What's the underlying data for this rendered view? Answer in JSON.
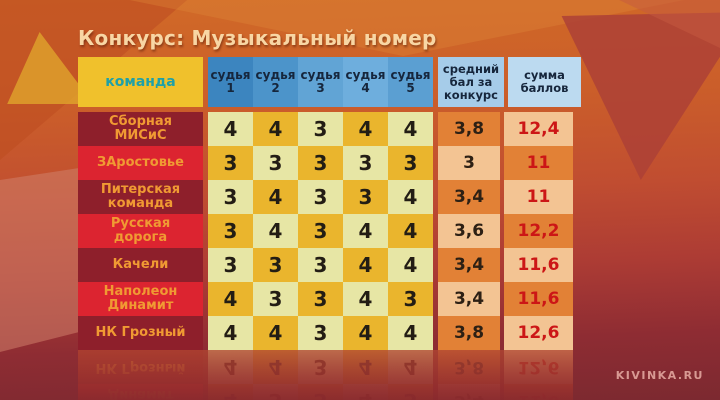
{
  "title": "Конкурс: Музыкальный номер",
  "watermark": "KIVINKA.RU",
  "table": {
    "team_header": "команда",
    "judges": [
      {
        "label": "судья",
        "num": "1"
      },
      {
        "label": "судья",
        "num": "2"
      },
      {
        "label": "судья",
        "num": "3"
      },
      {
        "label": "судья",
        "num": "4"
      },
      {
        "label": "судья",
        "num": "5"
      }
    ],
    "avg_header": "средний бал за конкурс",
    "sum_header": "сумма баллов",
    "rows": [
      {
        "team": "Сборная МИСиС",
        "scores": [
          4,
          4,
          3,
          4,
          4
        ],
        "avg": "3,8",
        "sum": "12,4"
      },
      {
        "team": "ЗАростовье",
        "scores": [
          3,
          3,
          3,
          3,
          3
        ],
        "avg": "3",
        "sum": "11"
      },
      {
        "team": "Питерская команда",
        "scores": [
          3,
          4,
          3,
          3,
          4
        ],
        "avg": "3,4",
        "sum": "11"
      },
      {
        "team": "Русская дорога",
        "scores": [
          3,
          4,
          3,
          4,
          4
        ],
        "avg": "3,6",
        "sum": "12,2"
      },
      {
        "team": "Качели",
        "scores": [
          3,
          3,
          3,
          4,
          4
        ],
        "avg": "3,4",
        "sum": "11,6"
      },
      {
        "team": "Наполеон Динамит",
        "scores": [
          4,
          3,
          3,
          4,
          3
        ],
        "avg": "3,4",
        "sum": "11,6"
      },
      {
        "team": "НК Грозный",
        "scores": [
          4,
          4,
          3,
          4,
          4
        ],
        "avg": "3,8",
        "sum": "12,6"
      }
    ]
  },
  "colors": {
    "team_col_dark": "#8e1f2b",
    "team_col_bright": "#dc2430",
    "team_text": "#f09a33",
    "cell_gold": "#eab52d",
    "cell_pale": "#e7e6a5",
    "avg_orange": "#e28136",
    "avg_peach": "#f3c493",
    "sum_text_red": "#cc1616",
    "header_yellow": "#f0c12c",
    "header_teal_text": "#1fa0a8",
    "header_blue_dark": "#3c85bf",
    "header_blue_light": "#bcdaf0",
    "title_cream": "#f8d6a4"
  },
  "chart_data": {
    "type": "table",
    "title": "Конкурс: Музыкальный номер",
    "columns": [
      "команда",
      "судья 1",
      "судья 2",
      "судья 3",
      "судья 4",
      "судья 5",
      "средний бал за конкурс",
      "сумма баллов"
    ],
    "rows": [
      [
        "Сборная МИСиС",
        4,
        4,
        3,
        4,
        4,
        "3,8",
        "12,4"
      ],
      [
        "ЗАростовье",
        3,
        3,
        3,
        3,
        3,
        "3",
        "11"
      ],
      [
        "Питерская команда",
        3,
        4,
        3,
        3,
        4,
        "3,4",
        "11"
      ],
      [
        "Русская дорога",
        3,
        4,
        3,
        4,
        4,
        "3,6",
        "12,2"
      ],
      [
        "Качели",
        3,
        3,
        3,
        4,
        4,
        "3,4",
        "11,6"
      ],
      [
        "Наполеон Динамит",
        4,
        3,
        3,
        4,
        3,
        "3,4",
        "11,6"
      ],
      [
        "НК Грозный",
        4,
        4,
        3,
        4,
        4,
        "3,8",
        "12,6"
      ]
    ]
  }
}
